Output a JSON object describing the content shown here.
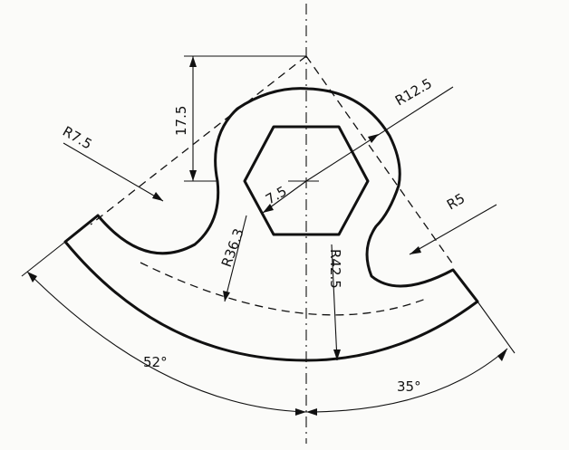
{
  "drawing": {
    "dimensions": {
      "height": "17.5",
      "r_left_fillet": "R7.5",
      "r_top_arc": "R12.5",
      "hex_size": "7.5",
      "r_right_fillet": "R5",
      "r_inner": "R36.3",
      "r_outer": "R42.5",
      "angle_left": "52°",
      "angle_right": "35°"
    }
  }
}
